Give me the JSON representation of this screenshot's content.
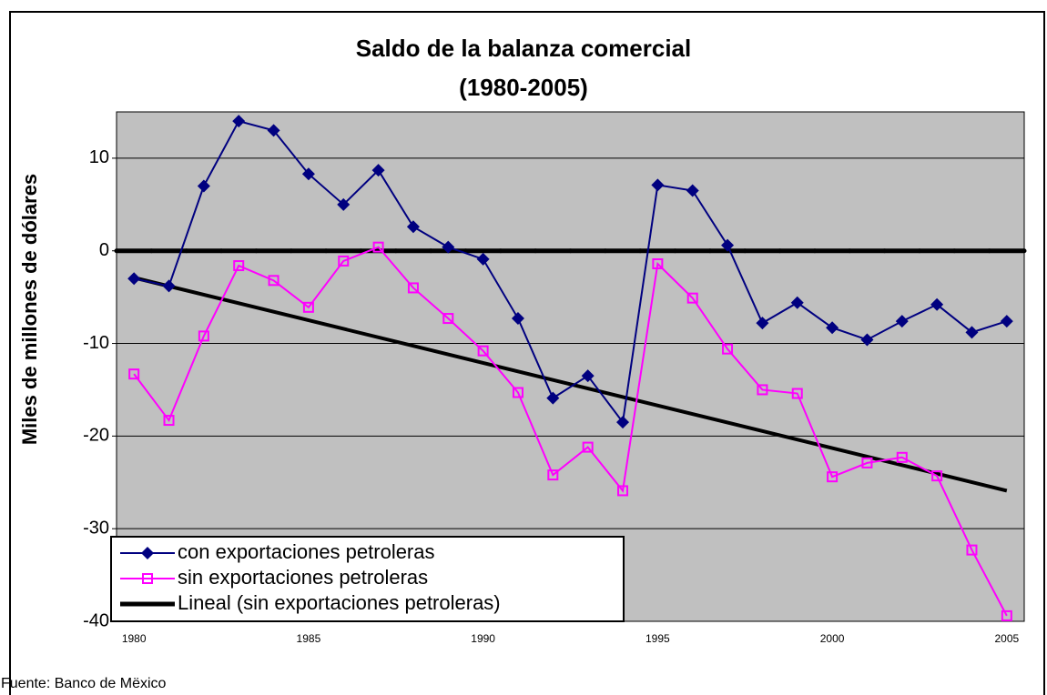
{
  "chart_data": {
    "type": "line",
    "title": "Saldo de la balanza comercial",
    "subtitle": "(1980-2005)",
    "y_label": "Miles de millones de dólares",
    "source": "Fuente: Banco de Mëxico",
    "categories": [
      "1980",
      null,
      null,
      null,
      null,
      "1985",
      null,
      null,
      null,
      null,
      "1990",
      null,
      null,
      null,
      null,
      "1995",
      null,
      null,
      null,
      null,
      "2000",
      null,
      null,
      null,
      null,
      "2005"
    ],
    "series": [
      {
        "name": "con exportaciones petroleras",
        "color": "#000080",
        "marker": "diamond",
        "values": [
          -3,
          -3.8,
          7,
          14,
          13,
          8.3,
          5,
          8.7,
          2.6,
          0.4,
          -0.9,
          -7.3,
          -15.9,
          -13.5,
          -18.5,
          7.1,
          6.5,
          0.6,
          -7.8,
          -5.6,
          -8.3,
          -9.6,
          -7.6,
          -5.8,
          -8.8,
          -7.6
        ]
      },
      {
        "name": "sin exportaciones petroleras",
        "color": "#ff00ff",
        "marker": "square",
        "values": [
          -13.3,
          -18.3,
          -9.2,
          -1.6,
          -3.2,
          -6.1,
          -1.1,
          0.4,
          -4,
          -7.3,
          -10.8,
          -15.3,
          -24.2,
          -21.2,
          -25.9,
          -1.4,
          -5.1,
          -10.6,
          -15,
          -15.4,
          -24.4,
          -22.9,
          -22.3,
          -24.3,
          -32.3,
          -39.4
        ]
      }
    ],
    "trendline": {
      "name": "Lineal (sin exportaciones petroleras)",
      "color": "#000000",
      "start": -2.9,
      "end": -25.9
    },
    "ylim": [
      -40,
      15
    ],
    "yticks": [
      -40,
      -30,
      -20,
      -10,
      0,
      10
    ],
    "grid": true,
    "legend": "lower-left",
    "background": "#c0c0c0"
  }
}
